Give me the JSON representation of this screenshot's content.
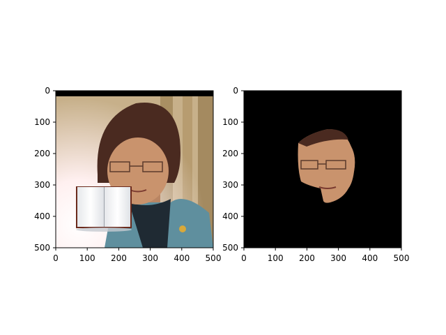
{
  "chart_data": [
    {
      "type": "image",
      "subject": "photo-original",
      "xlim": [
        0,
        500
      ],
      "ylim": [
        500,
        0
      ],
      "xticks": [
        0,
        100,
        200,
        300,
        400,
        500
      ],
      "yticks": [
        0,
        100,
        200,
        300,
        400,
        500
      ],
      "xtick_labels": [
        "0",
        "100",
        "200",
        "300",
        "400",
        "500"
      ],
      "ytick_labels": [
        "0",
        "100",
        "200",
        "300",
        "400",
        "500"
      ],
      "grid": false,
      "colors": {
        "top_band": "#000000",
        "background": "#c7b08a",
        "curtain": "#a98f63",
        "glow": "#fff6e8",
        "hair": "#4a2a20",
        "skin": "#c9936d",
        "jacket": "#5f8f9e",
        "collar": "#1f2a33",
        "book_page": "#f2f4f6",
        "book_cover": "#6b2a1c"
      }
    },
    {
      "type": "image",
      "subject": "photo-face-mask",
      "xlim": [
        0,
        500
      ],
      "ylim": [
        500,
        0
      ],
      "xticks": [
        0,
        100,
        200,
        300,
        400,
        500
      ],
      "yticks": [
        0,
        100,
        200,
        300,
        400,
        500
      ],
      "xtick_labels": [
        "0",
        "100",
        "200",
        "300",
        "400",
        "500"
      ],
      "ytick_labels": [
        "0",
        "100",
        "200",
        "300",
        "400",
        "500"
      ],
      "grid": false,
      "colors": {
        "background": "#000000",
        "skin": "#c9936d",
        "skin_shadow": "#a87354",
        "hair": "#4a2a20"
      }
    }
  ]
}
